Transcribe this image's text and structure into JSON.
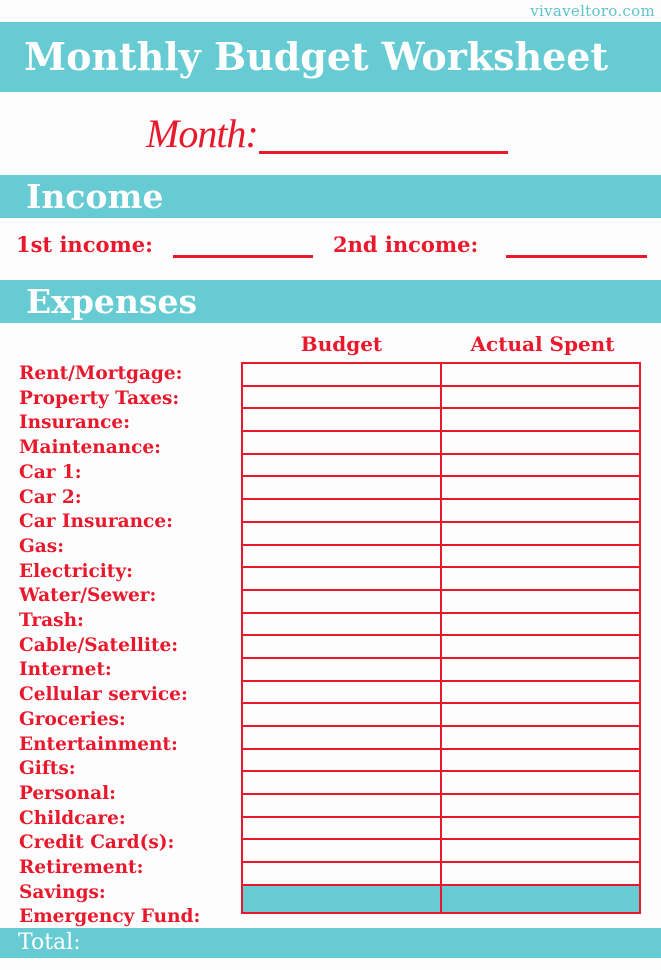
{
  "site": "vivaveltoro.com",
  "title": "Monthly Budget Worksheet",
  "month_label": "Month:",
  "income": {
    "heading": "Income",
    "first": "1st income:",
    "second": "2nd income:"
  },
  "expenses": {
    "heading": "Expenses",
    "columns": [
      "Budget",
      "Actual Spent"
    ],
    "items": [
      "Rent/Mortgage:",
      "Property Taxes:",
      "Insurance:",
      "Maintenance:",
      "Car 1:",
      "Car 2:",
      "Car Insurance:",
      "Gas:",
      "Electricity:",
      "Water/Sewer:",
      "Trash:",
      "Cable/Satellite:",
      "Internet:",
      "Cellular service:",
      "Groceries:",
      "Entertainment:",
      "Gifts:",
      "Personal:",
      "Childcare:",
      "Credit Card(s):",
      "Retirement:",
      "Savings:",
      "Emergency Fund:"
    ],
    "total_label": "Total:"
  },
  "colors": {
    "accent": "#66cbd2",
    "ink": "#e8192c"
  }
}
